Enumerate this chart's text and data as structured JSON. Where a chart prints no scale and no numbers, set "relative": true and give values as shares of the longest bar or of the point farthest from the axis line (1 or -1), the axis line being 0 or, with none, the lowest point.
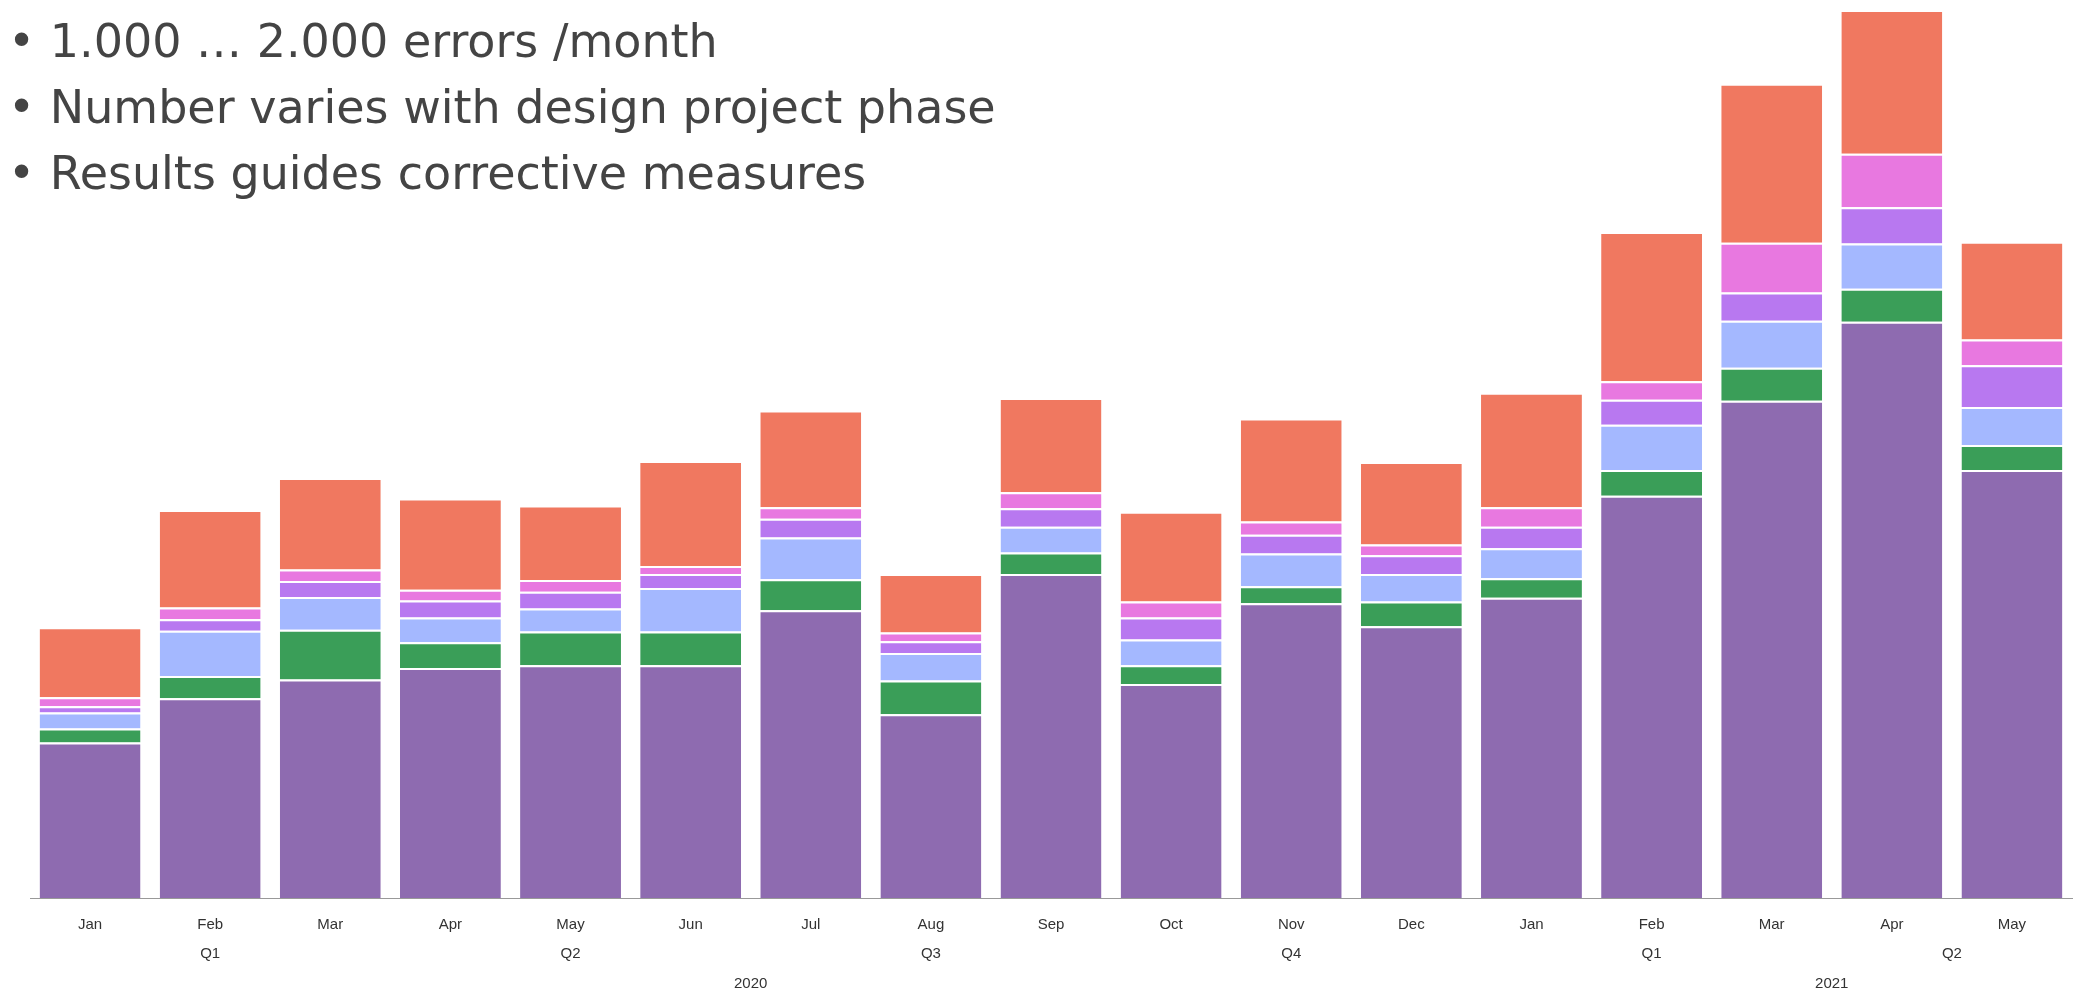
{
  "chart_data": {
    "type": "bar",
    "stacked": true,
    "relative": true,
    "grid": false,
    "legend": false,
    "categories": [
      "Jan",
      "Feb",
      "Mar",
      "Apr",
      "May",
      "Jun",
      "Jul",
      "Aug",
      "Sep",
      "Oct",
      "Nov",
      "Dec",
      "Jan",
      "Feb",
      "Mar",
      "Apr",
      "May"
    ],
    "series": [
      {
        "color": "#8e6bb0",
        "values": [
          0.175,
          0.225,
          0.246,
          0.259,
          0.262,
          0.262,
          0.324,
          0.207,
          0.365,
          0.241,
          0.332,
          0.306,
          0.338,
          0.453,
          0.56,
          0.649,
          0.482
        ]
      },
      {
        "color": "#3a9e58",
        "values": [
          0.016,
          0.025,
          0.056,
          0.029,
          0.038,
          0.038,
          0.035,
          0.038,
          0.024,
          0.021,
          0.019,
          0.028,
          0.022,
          0.029,
          0.037,
          0.037,
          0.028
        ]
      },
      {
        "color": "#a4b8ff",
        "values": [
          0.018,
          0.051,
          0.037,
          0.028,
          0.026,
          0.049,
          0.047,
          0.031,
          0.029,
          0.029,
          0.037,
          0.031,
          0.034,
          0.051,
          0.053,
          0.051,
          0.043
        ]
      },
      {
        "color": "#b878f0",
        "values": [
          0.007,
          0.013,
          0.018,
          0.019,
          0.019,
          0.016,
          0.021,
          0.013,
          0.021,
          0.025,
          0.021,
          0.021,
          0.024,
          0.028,
          0.032,
          0.041,
          0.047
        ]
      },
      {
        "color": "#e878e0",
        "values": [
          0.01,
          0.013,
          0.013,
          0.012,
          0.013,
          0.009,
          0.013,
          0.01,
          0.018,
          0.018,
          0.015,
          0.012,
          0.022,
          0.021,
          0.056,
          0.06,
          0.029
        ]
      },
      {
        "color": "#f07860",
        "values": [
          0.079,
          0.11,
          0.103,
          0.103,
          0.084,
          0.118,
          0.109,
          0.066,
          0.106,
          0.101,
          0.116,
          0.093,
          0.129,
          0.168,
          0.179,
          0.162,
          0.11
        ]
      }
    ],
    "annotations": [
      "• 1.000 … 2.000 errors /month",
      "• Number varies with design project phase",
      "• Results guides corrective measures",
      "Q1",
      "Q2",
      "Q3",
      "Q4",
      "Q1",
      "Q2",
      "2020",
      "2021"
    ]
  }
}
